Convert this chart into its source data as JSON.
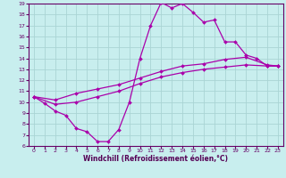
{
  "xlabel": "Windchill (Refroidissement éolien,°C)",
  "xlim": [
    -0.5,
    23.5
  ],
  "ylim": [
    6,
    19
  ],
  "yticks": [
    6,
    7,
    8,
    9,
    10,
    11,
    12,
    13,
    14,
    15,
    16,
    17,
    18,
    19
  ],
  "xticks": [
    0,
    1,
    2,
    3,
    4,
    5,
    6,
    7,
    8,
    9,
    10,
    11,
    12,
    13,
    14,
    15,
    16,
    17,
    18,
    19,
    20,
    21,
    22,
    23
  ],
  "bg_color": "#c8eeee",
  "grid_color": "#aad4d4",
  "line_color": "#aa00aa",
  "line1_x": [
    0,
    1,
    2,
    3,
    4,
    5,
    6,
    7,
    8,
    9,
    10,
    11,
    12,
    13,
    14,
    15,
    16,
    17,
    18,
    19,
    20,
    21,
    22,
    23
  ],
  "line1_y": [
    10.5,
    9.9,
    9.2,
    8.8,
    7.6,
    7.3,
    6.4,
    6.4,
    7.5,
    10.0,
    14.0,
    17.0,
    19.1,
    18.6,
    19.0,
    18.2,
    17.3,
    17.5,
    15.5,
    15.5,
    14.3,
    14.0,
    13.3,
    13.3
  ],
  "line2_x": [
    0,
    2,
    4,
    6,
    8,
    10,
    12,
    14,
    16,
    18,
    20,
    22,
    23
  ],
  "line2_y": [
    10.5,
    10.2,
    10.8,
    11.2,
    11.6,
    12.2,
    12.8,
    13.3,
    13.5,
    13.9,
    14.1,
    13.4,
    13.3
  ],
  "line3_x": [
    0,
    2,
    4,
    6,
    8,
    10,
    12,
    14,
    16,
    18,
    20,
    22,
    23
  ],
  "line3_y": [
    10.5,
    9.8,
    10.0,
    10.5,
    11.0,
    11.7,
    12.3,
    12.7,
    13.0,
    13.2,
    13.4,
    13.3,
    13.3
  ]
}
